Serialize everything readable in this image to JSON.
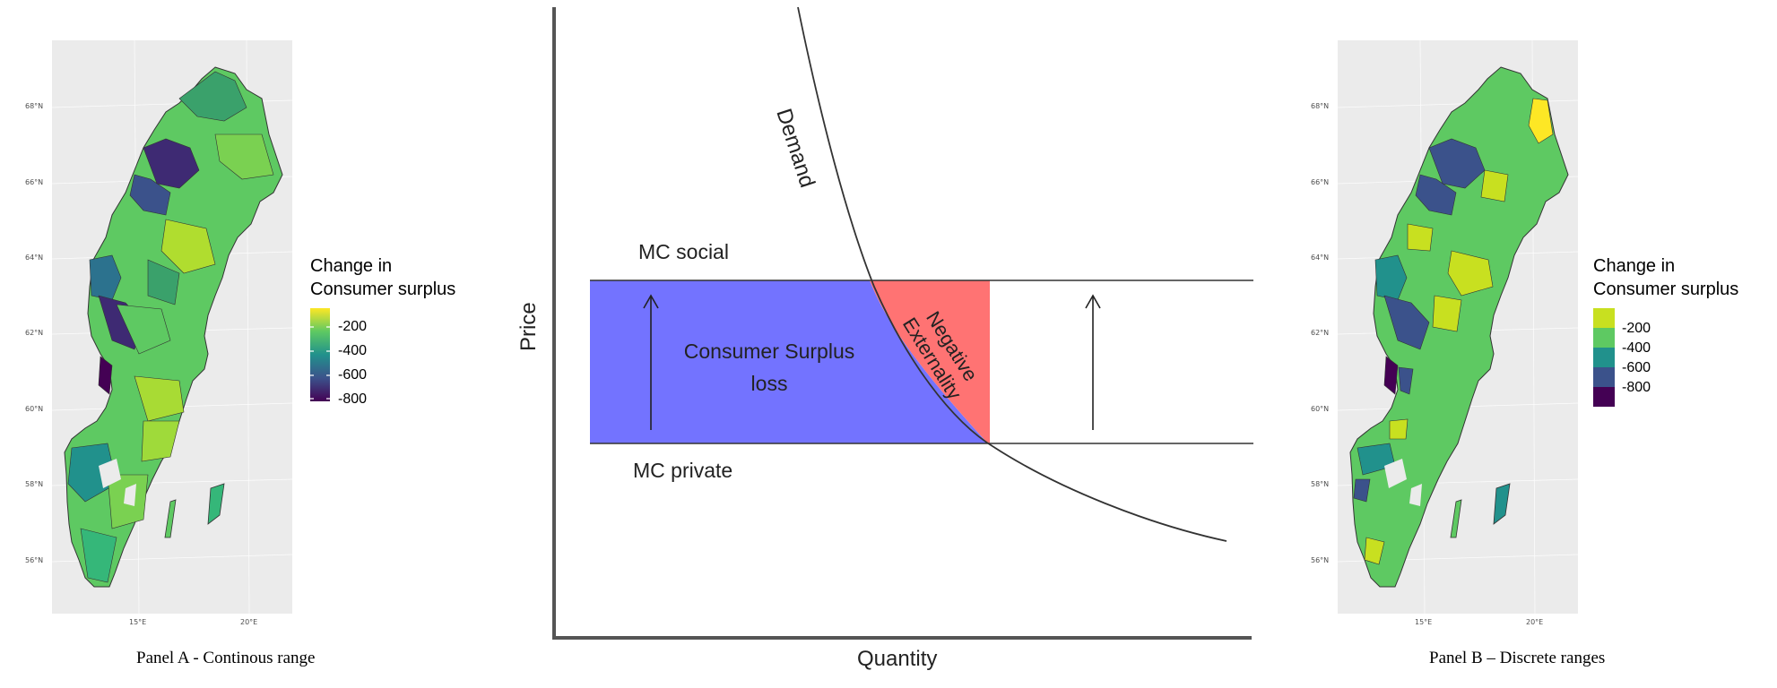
{
  "panel_a": {
    "lat_ticks": [
      "68°N",
      "66°N",
      "64°N",
      "62°N",
      "60°N",
      "58°N",
      "56°N"
    ],
    "lon_ticks": [
      "15°E",
      "20°E"
    ],
    "legend_title_line1": "Change in",
    "legend_title_line2": "Consumer surplus",
    "legend_labels": [
      "-200",
      "-400",
      "-600",
      "-800"
    ],
    "caption": "Panel A - Continous range"
  },
  "diagram": {
    "demand_label": "Demand",
    "mc_social_label": "MC social",
    "mc_private_label": "MC private",
    "cs_loss_line1": "Consumer Surplus",
    "cs_loss_line2": "loss",
    "externality_line1": "Negative",
    "externality_line2": "Externality",
    "x_axis_label": "Quantity",
    "y_axis_label": "Price"
  },
  "panel_b": {
    "lat_ticks": [
      "68°N",
      "66°N",
      "64°N",
      "62°N",
      "60°N",
      "58°N",
      "56°N"
    ],
    "lon_ticks": [
      "15°E",
      "20°E"
    ],
    "legend_title_line1": "Change in",
    "legend_title_line2": "Consumer surplus",
    "legend_labels": [
      "-200",
      "-400",
      "-600",
      "-800"
    ],
    "caption": "Panel B – Discrete ranges"
  },
  "colors": {
    "cs_loss_fill": "#7373ff",
    "externality_fill": "#ff7373",
    "viridis_yellow": "#fde725",
    "viridis_green": "#5ec962",
    "viridis_teal": "#21918c",
    "viridis_blue": "#3b528b",
    "viridis_purple": "#440154",
    "map_panel_bg": "#ebebeb"
  }
}
